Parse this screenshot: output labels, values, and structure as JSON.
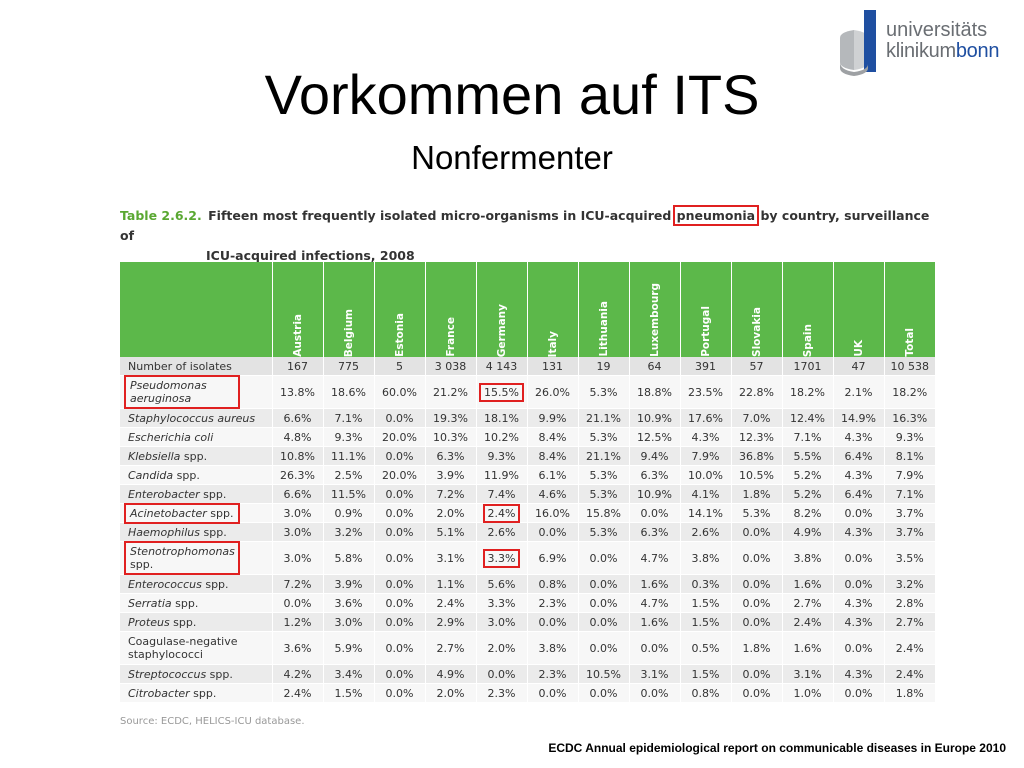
{
  "slide": {
    "title": "Vorkommen auf ITS",
    "subtitle": "Nonfermenter",
    "footer": "ECDC Annual epidemiological report on communicable diseases in Europe 2010"
  },
  "logo": {
    "line1": "universitäts",
    "line2a": "klinikum",
    "line2b": "bonn",
    "colors": {
      "gray": "#6a6e73",
      "blue": "#1f4fa1"
    }
  },
  "caption": {
    "table_no": "Table 2.6.2.",
    "part1": "Fifteen most frequently isolated micro-organisms in ICU-acquired",
    "highlight": "pneumonia",
    "part2": "by country, surveillance of",
    "line2": "ICU-acquired infections, 2008"
  },
  "table": {
    "header_color": "#5cb84a",
    "columns": [
      "Austria",
      "Belgium",
      "Estonia",
      "France",
      "Germany",
      "Italy",
      "Lithuania",
      "Luxembourg",
      "Portugal",
      "Slovakia",
      "Spain",
      "UK",
      "Total"
    ],
    "isolates": {
      "label": "Number of isolates",
      "values": [
        "167",
        "775",
        "5",
        "3 038",
        "4 143",
        "131",
        "19",
        "64",
        "391",
        "57",
        "1701",
        "47",
        "10 538"
      ]
    },
    "rows": [
      {
        "name_it": "Pseudomonas aeruginosa",
        "name_rm": "",
        "values": [
          "13.8%",
          "18.6%",
          "60.0%",
          "21.2%",
          "15.5%",
          "26.0%",
          "5.3%",
          "18.8%",
          "23.5%",
          "22.8%",
          "18.2%",
          "2.1%",
          "18.2%"
        ]
      },
      {
        "name_it": "Staphylococcus aureus",
        "name_rm": "",
        "values": [
          "6.6%",
          "7.1%",
          "0.0%",
          "19.3%",
          "18.1%",
          "9.9%",
          "21.1%",
          "10.9%",
          "17.6%",
          "7.0%",
          "12.4%",
          "14.9%",
          "16.3%"
        ]
      },
      {
        "name_it": "Escherichia coli",
        "name_rm": "",
        "values": [
          "4.8%",
          "9.3%",
          "20.0%",
          "10.3%",
          "10.2%",
          "8.4%",
          "5.3%",
          "12.5%",
          "4.3%",
          "12.3%",
          "7.1%",
          "4.3%",
          "9.3%"
        ]
      },
      {
        "name_it": "Klebsiella",
        "name_rm": " spp.",
        "values": [
          "10.8%",
          "11.1%",
          "0.0%",
          "6.3%",
          "9.3%",
          "8.4%",
          "21.1%",
          "9.4%",
          "7.9%",
          "36.8%",
          "5.5%",
          "6.4%",
          "8.1%"
        ]
      },
      {
        "name_it": "Candida",
        "name_rm": " spp.",
        "values": [
          "26.3%",
          "2.5%",
          "20.0%",
          "3.9%",
          "11.9%",
          "6.1%",
          "5.3%",
          "6.3%",
          "10.0%",
          "10.5%",
          "5.2%",
          "4.3%",
          "7.9%"
        ]
      },
      {
        "name_it": "Enterobacter",
        "name_rm": " spp.",
        "values": [
          "6.6%",
          "11.5%",
          "0.0%",
          "7.2%",
          "7.4%",
          "4.6%",
          "5.3%",
          "10.9%",
          "4.1%",
          "1.8%",
          "5.2%",
          "6.4%",
          "7.1%"
        ]
      },
      {
        "name_it": "Acinetobacter",
        "name_rm": " spp.",
        "values": [
          "3.0%",
          "0.9%",
          "0.0%",
          "2.0%",
          "2.4%",
          "16.0%",
          "15.8%",
          "0.0%",
          "14.1%",
          "5.3%",
          "8.2%",
          "0.0%",
          "3.7%"
        ]
      },
      {
        "name_it": "Haemophilus",
        "name_rm": " spp.",
        "values": [
          "3.0%",
          "3.2%",
          "0.0%",
          "5.1%",
          "2.6%",
          "0.0%",
          "5.3%",
          "6.3%",
          "2.6%",
          "0.0%",
          "4.9%",
          "4.3%",
          "3.7%"
        ]
      },
      {
        "name_it": "Stenotrophomonas",
        "name_rm": " spp.",
        "values": [
          "3.0%",
          "5.8%",
          "0.0%",
          "3.1%",
          "3.3%",
          "6.9%",
          "0.0%",
          "4.7%",
          "3.8%",
          "0.0%",
          "3.8%",
          "0.0%",
          "3.5%"
        ]
      },
      {
        "name_it": "Enterococcus",
        "name_rm": " spp.",
        "values": [
          "7.2%",
          "3.9%",
          "0.0%",
          "1.1%",
          "5.6%",
          "0.8%",
          "0.0%",
          "1.6%",
          "0.3%",
          "0.0%",
          "1.6%",
          "0.0%",
          "3.2%"
        ]
      },
      {
        "name_it": "Serratia",
        "name_rm": " spp.",
        "values": [
          "0.0%",
          "3.6%",
          "0.0%",
          "2.4%",
          "3.3%",
          "2.3%",
          "0.0%",
          "4.7%",
          "1.5%",
          "0.0%",
          "2.7%",
          "4.3%",
          "2.8%"
        ]
      },
      {
        "name_it": "Proteus",
        "name_rm": " spp.",
        "values": [
          "1.2%",
          "3.0%",
          "0.0%",
          "2.9%",
          "3.0%",
          "0.0%",
          "0.0%",
          "1.6%",
          "1.5%",
          "0.0%",
          "2.4%",
          "4.3%",
          "2.7%"
        ]
      },
      {
        "name_it": "",
        "name_rm": "Coagulase-negative staphylococci",
        "values": [
          "3.6%",
          "5.9%",
          "0.0%",
          "2.7%",
          "2.0%",
          "3.8%",
          "0.0%",
          "0.0%",
          "0.5%",
          "1.8%",
          "1.6%",
          "0.0%",
          "2.4%"
        ]
      },
      {
        "name_it": "Streptococcus",
        "name_rm": " spp.",
        "values": [
          "4.2%",
          "3.4%",
          "0.0%",
          "4.9%",
          "0.0%",
          "2.3%",
          "10.5%",
          "3.1%",
          "1.5%",
          "0.0%",
          "3.1%",
          "4.3%",
          "2.4%"
        ]
      },
      {
        "name_it": "Citrobacter",
        "name_rm": " spp.",
        "values": [
          "2.4%",
          "1.5%",
          "0.0%",
          "2.0%",
          "2.3%",
          "0.0%",
          "0.0%",
          "0.0%",
          "0.8%",
          "0.0%",
          "1.0%",
          "0.0%",
          "1.8%"
        ]
      }
    ],
    "highlighted_rows": [
      "Pseudomonas aeruginosa",
      "Acinetobacter spp.",
      "Stenotrophomonas spp."
    ],
    "highlight_color": "#e02020"
  },
  "source": "Source: ECDC, HELICS-ICU database."
}
